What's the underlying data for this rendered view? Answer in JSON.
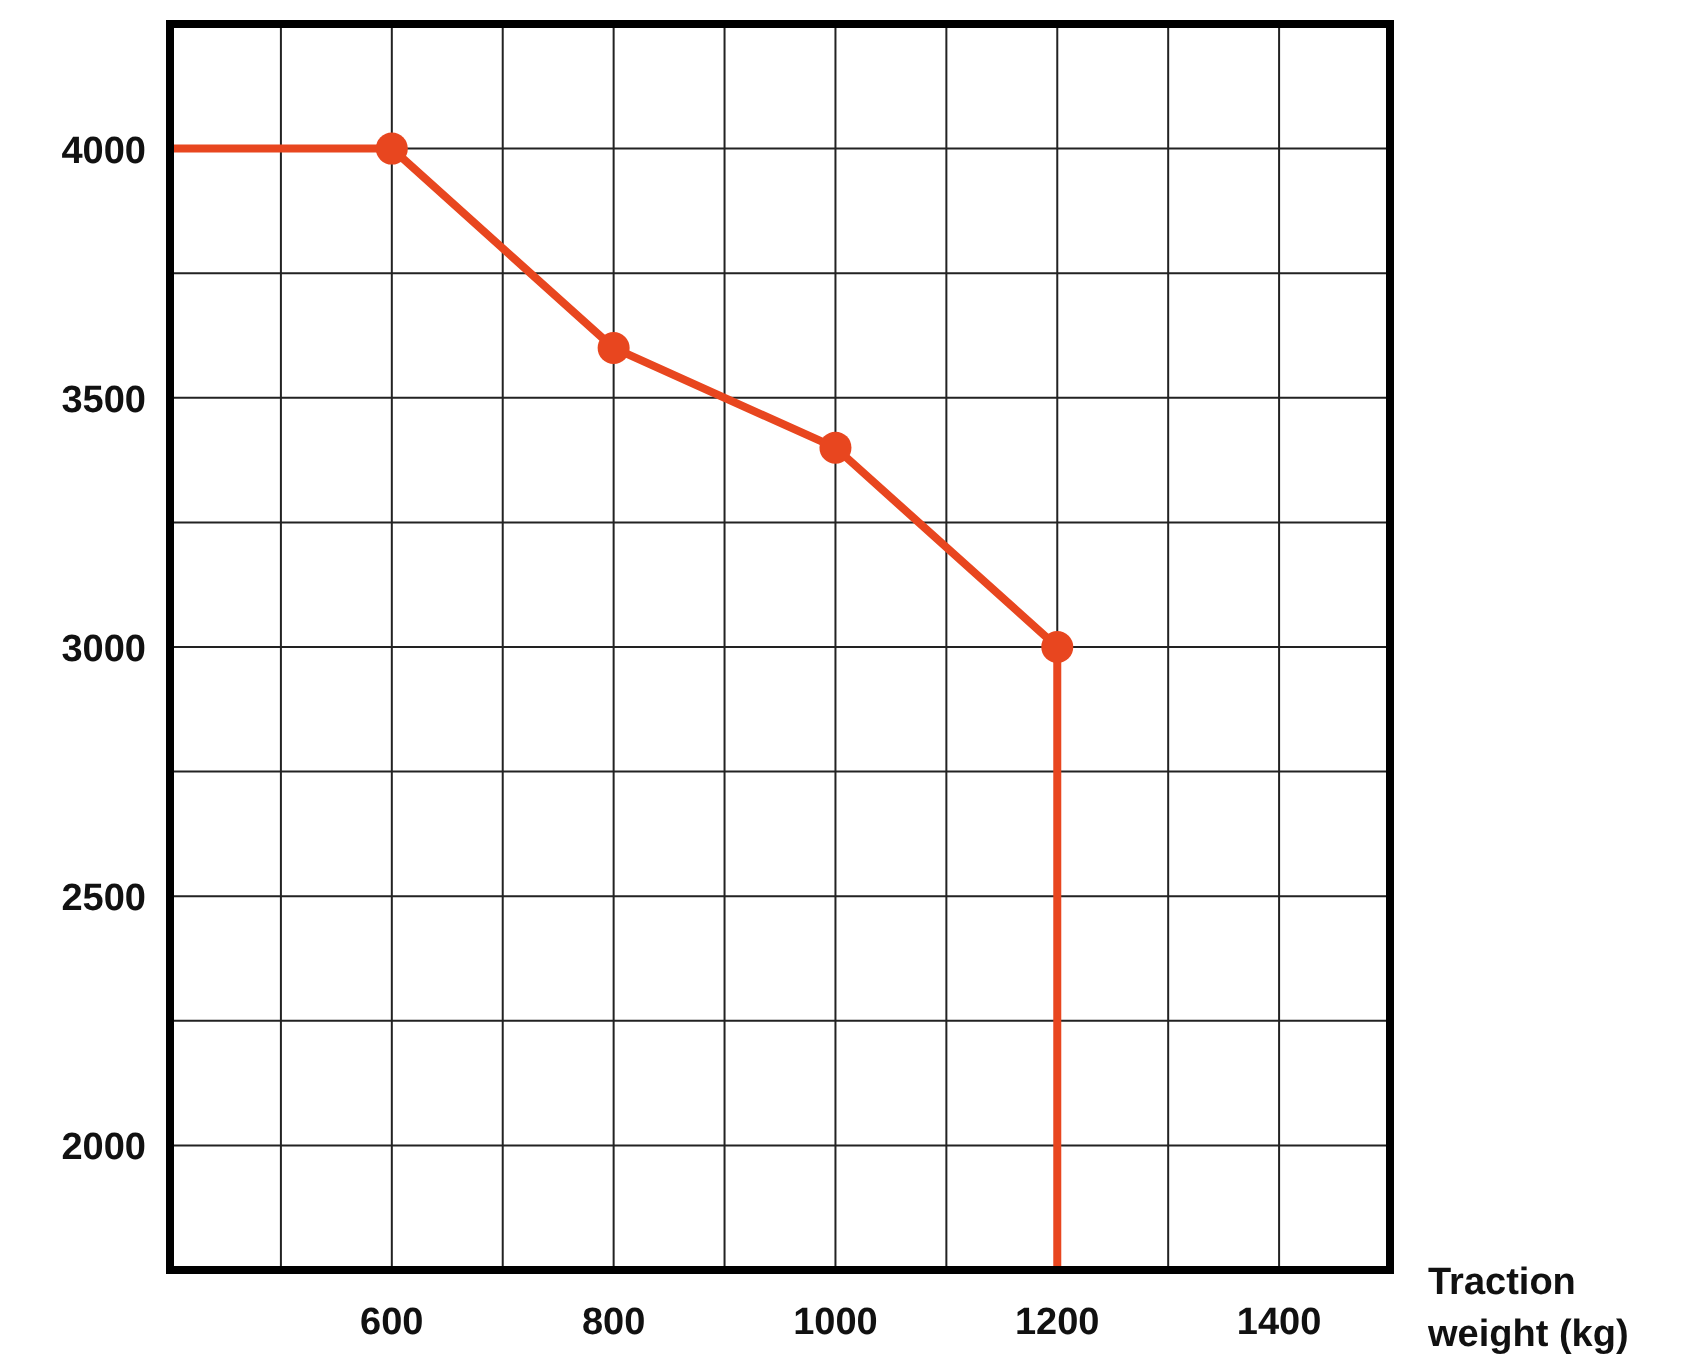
{
  "chart_data": {
    "type": "line",
    "xlabel": "Traction weight (kg)",
    "xlim": [
      400,
      1500
    ],
    "ylim": [
      1750,
      4250
    ],
    "xticks": [
      {
        "value": 500,
        "label": null
      },
      600,
      {
        "value": 700,
        "label": null
      },
      800,
      {
        "value": 900,
        "label": null
      },
      1000,
      {
        "value": 1100,
        "label": null
      },
      1200,
      {
        "value": 1300,
        "label": null
      },
      1400
    ],
    "yticks": [
      2000,
      {
        "value": 2250,
        "label": null
      },
      2500,
      {
        "value": 2750,
        "label": null
      },
      3000,
      {
        "value": 3250,
        "label": null
      },
      3500,
      {
        "value": 3750,
        "label": null
      },
      4000
    ],
    "grid": true,
    "series": [
      {
        "type": "line",
        "color": "#e8461f",
        "marker": "none",
        "x": [
          400,
          600,
          800,
          1000,
          1200,
          1200
        ],
        "values": [
          4000,
          4000,
          3600,
          3400,
          3000,
          1750
        ]
      },
      {
        "type": "scatter",
        "color": "#e8461f",
        "marker": "circle",
        "x": [
          600,
          800,
          1000,
          1200
        ],
        "values": [
          4000,
          3600,
          3400,
          3000
        ]
      }
    ]
  }
}
